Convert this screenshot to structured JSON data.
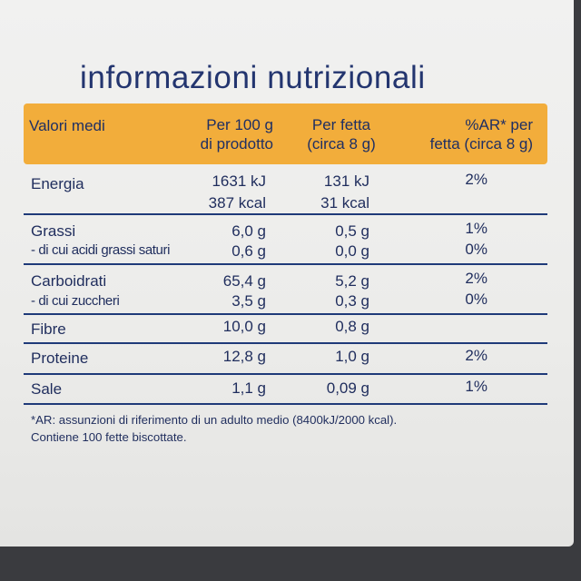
{
  "title": "informazioni nutrizionali",
  "header": {
    "col1": "Valori medi",
    "col2_line1": "Per 100 g",
    "col2_line2": "di prodotto",
    "col3_line1": "Per fetta",
    "col3_line2": "(circa 8 g)",
    "col4_line1": "%AR* per",
    "col4_line2": "fetta (circa 8 g)"
  },
  "rows": {
    "energia": {
      "label": "Energia",
      "per100_kj": "1631 kJ",
      "per100_kcal": "387 kcal",
      "fetta_kj": "131 kJ",
      "fetta_kcal": "31 kcal",
      "ar": "2%"
    },
    "grassi": {
      "label": "Grassi",
      "per100": "6,0 g",
      "fetta": "0,5 g",
      "ar": "1%",
      "sub_label": "- di cui acidi grassi saturi",
      "sub_per100": "0,6 g",
      "sub_fetta": "0,0 g",
      "sub_ar": "0%"
    },
    "carboidrati": {
      "label": "Carboidrati",
      "per100": "65,4 g",
      "fetta": "5,2 g",
      "ar": "2%",
      "sub_label": "- di cui zuccheri",
      "sub_per100": "3,5 g",
      "sub_fetta": "0,3 g",
      "sub_ar": "0%"
    },
    "fibre": {
      "label": "Fibre",
      "per100": "10,0 g",
      "fetta": "0,8 g"
    },
    "proteine": {
      "label": "Proteine",
      "per100": "12,8 g",
      "fetta": "1,0 g",
      "ar": "2%"
    },
    "sale": {
      "label": "Sale",
      "per100": "1,1 g",
      "fetta": "0,09 g",
      "ar": "1%"
    }
  },
  "footnote": {
    "line1": "*AR: assunzioni di riferimento di un adulto medio (8400kJ/2000 kcal).",
    "line2": "Contiene 100 fette biscottate."
  }
}
